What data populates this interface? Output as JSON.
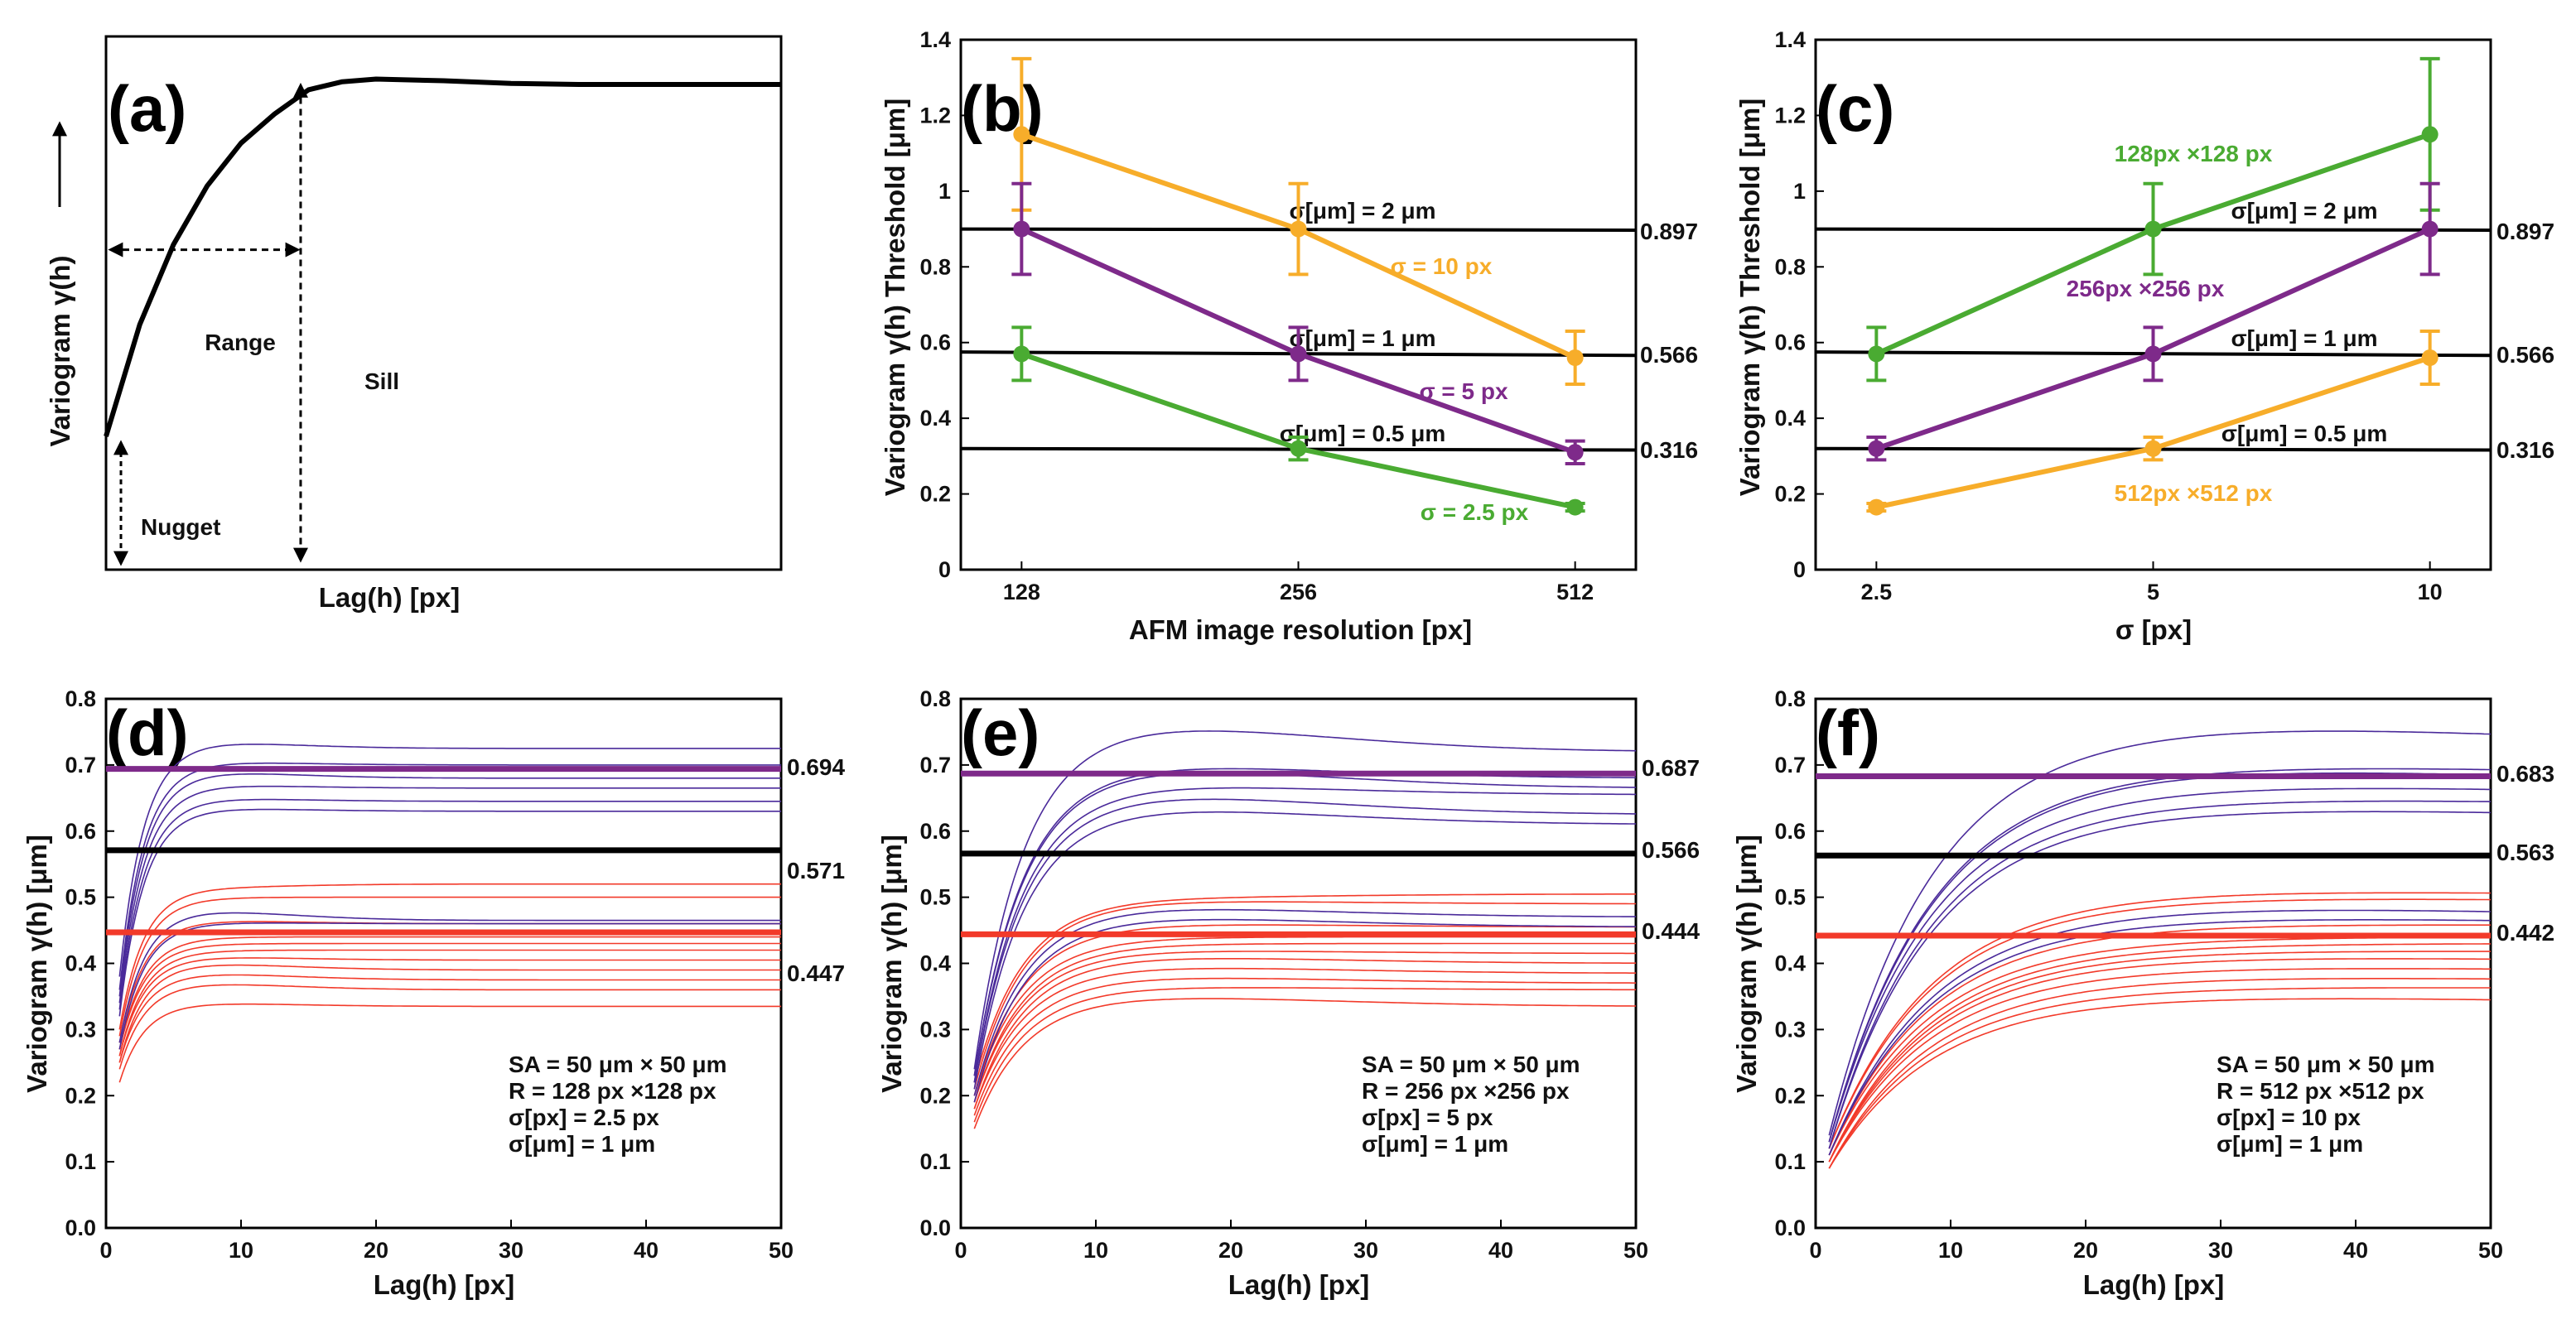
{
  "colors": {
    "black": "#000000",
    "green": "#4aab32",
    "purple": "#7e2a8a",
    "orange": "#f7ad2a",
    "red": "#f23a2a",
    "blue": "#4a2a9a"
  },
  "chart_data": [
    {
      "id": "a",
      "type": "line",
      "panel_label": "(a)",
      "title": "",
      "xlabel": "Lag(h) [px]",
      "ylabel": "Variogram γ(h)",
      "arrow_icon": "up-arrow-icon",
      "annotations": {
        "range": "Range",
        "sill": "Sill",
        "nugget": "Nugget"
      },
      "curve": {
        "nugget": 0.25,
        "sill": 0.92,
        "range": 0.31,
        "x": [
          0,
          0.05,
          0.1,
          0.15,
          0.2,
          0.25,
          0.3,
          0.35,
          0.4,
          0.5,
          0.6,
          0.7,
          0.8,
          0.9,
          1.0
        ],
        "y": [
          0.25,
          0.46,
          0.61,
          0.72,
          0.8,
          0.855,
          0.9,
          0.915,
          0.92,
          0.917,
          0.912,
          0.91,
          0.91,
          0.91,
          0.91
        ]
      }
    },
    {
      "id": "b",
      "type": "line",
      "panel_label": "(b)",
      "xlabel": "AFM image resolution [px]",
      "ylabel": "Variogram γ(h)  Threshold [μm]",
      "x_ticks": [
        "128",
        "256",
        "512"
      ],
      "y_ticks": [
        "0",
        "0.2",
        "0.4",
        "0.6",
        "0.8",
        "1",
        "1.2",
        "1.4"
      ],
      "ylim": [
        0,
        1.4
      ],
      "reference_lines": [
        {
          "label": "σ[μm] = 2 μm",
          "value_label": "0.897",
          "y0": 0.9,
          "y1": 0.897
        },
        {
          "label": "σ[μm] = 1 μm",
          "value_label": "0.566",
          "y0": 0.575,
          "y1": 0.566
        },
        {
          "label": "σ[μm] = 0.5 μm",
          "value_label": "0.316",
          "y0": 0.32,
          "y1": 0.316
        }
      ],
      "series": [
        {
          "name": "σ = 10 px",
          "color": "orange",
          "values": [
            1.15,
            0.9,
            0.56
          ],
          "errors": [
            0.2,
            0.12,
            0.07
          ]
        },
        {
          "name": "σ = 5 px",
          "color": "purple",
          "values": [
            0.9,
            0.57,
            0.31
          ],
          "errors": [
            0.12,
            0.07,
            0.03
          ]
        },
        {
          "name": "σ = 2.5 px",
          "color": "green",
          "values": [
            0.57,
            0.32,
            0.165
          ],
          "errors": [
            0.07,
            0.03,
            0.01
          ]
        }
      ]
    },
    {
      "id": "c",
      "type": "line",
      "panel_label": "(c)",
      "xlabel": "σ [px]",
      "ylabel": "Variogram γ(h)  Threshold [μm]",
      "x_ticks": [
        "2.5",
        "5",
        "10"
      ],
      "y_ticks": [
        "0",
        "0.2",
        "0.4",
        "0.6",
        "0.8",
        "1",
        "1.2",
        "1.4"
      ],
      "ylim": [
        0,
        1.4
      ],
      "reference_lines": [
        {
          "label": "σ[μm] = 2 μm",
          "value_label": "0.897",
          "y0": 0.9,
          "y1": 0.897
        },
        {
          "label": "σ[μm] = 1 μm",
          "value_label": "0.566",
          "y0": 0.575,
          "y1": 0.566
        },
        {
          "label": "σ[μm] = 0.5 μm",
          "value_label": "0.316",
          "y0": 0.32,
          "y1": 0.316
        }
      ],
      "series": [
        {
          "name": "128px ×128 px",
          "color": "green",
          "values": [
            0.57,
            0.9,
            1.15
          ],
          "errors": [
            0.07,
            0.12,
            0.2
          ]
        },
        {
          "name": "256px ×256 px",
          "color": "purple",
          "values": [
            0.32,
            0.57,
            0.9
          ],
          "errors": [
            0.03,
            0.07,
            0.12
          ]
        },
        {
          "name": "512px ×512 px",
          "color": "orange",
          "values": [
            0.165,
            0.32,
            0.56
          ],
          "errors": [
            0.01,
            0.03,
            0.07
          ]
        }
      ]
    },
    {
      "id": "d",
      "type": "line",
      "panel_label": "(d)",
      "xlabel": "Lag(h) [px]",
      "ylabel": "Variogram  γ(h) [μm]",
      "xlim": [
        0,
        50
      ],
      "ylim": [
        0,
        0.8
      ],
      "x_ticks": [
        "0",
        "10",
        "20",
        "30",
        "40",
        "50"
      ],
      "y_ticks": [
        "0.0",
        "0.1",
        "0.2",
        "0.3",
        "0.4",
        "0.5",
        "0.6",
        "0.7",
        "0.8"
      ],
      "rise_scale": 1.8,
      "thresholds": [
        {
          "value": 0.694,
          "label": "0.694",
          "color": "purple"
        },
        {
          "value": 0.571,
          "label": "0.571",
          "color": "black"
        },
        {
          "value": 0.447,
          "label": "0.447",
          "color": "red"
        }
      ],
      "blue_curves": [
        {
          "start": 0.38,
          "plateau": 0.735,
          "end": 0.725
        },
        {
          "start": 0.36,
          "plateau": 0.705,
          "end": 0.7
        },
        {
          "start": 0.35,
          "plateau": 0.69,
          "end": 0.68
        },
        {
          "start": 0.34,
          "plateau": 0.67,
          "end": 0.665
        },
        {
          "start": 0.33,
          "plateau": 0.65,
          "end": 0.645
        },
        {
          "start": 0.32,
          "plateau": 0.635,
          "end": 0.63
        },
        {
          "start": 0.28,
          "plateau": 0.48,
          "end": 0.465
        },
        {
          "start": 0.27,
          "plateau": 0.462,
          "end": 0.46
        }
      ],
      "red_curves": [
        {
          "start": 0.3,
          "plateau": 0.515,
          "end": 0.52
        },
        {
          "start": 0.29,
          "plateau": 0.5,
          "end": 0.5
        },
        {
          "start": 0.28,
          "plateau": 0.465,
          "end": 0.46
        },
        {
          "start": 0.27,
          "plateau": 0.44,
          "end": 0.44
        },
        {
          "start": 0.27,
          "plateau": 0.43,
          "end": 0.43
        },
        {
          "start": 0.26,
          "plateau": 0.42,
          "end": 0.42
        },
        {
          "start": 0.26,
          "plateau": 0.41,
          "end": 0.405
        },
        {
          "start": 0.25,
          "plateau": 0.4,
          "end": 0.39
        },
        {
          "start": 0.25,
          "plateau": 0.385,
          "end": 0.375
        },
        {
          "start": 0.24,
          "plateau": 0.37,
          "end": 0.36
        },
        {
          "start": 0.22,
          "plateau": 0.34,
          "end": 0.335
        }
      ],
      "info_lines": [
        "SA = 50 μm × 50 μm",
        "R = 128 px ×128 px",
        "σ[px] = 2.5 px",
        "σ[μm] = 1 μm"
      ]
    },
    {
      "id": "e",
      "type": "line",
      "panel_label": "(e)",
      "xlabel": "Lag(h) [px]",
      "ylabel": "Variogram  γ(h) [μm]",
      "xlim": [
        0,
        50
      ],
      "ylim": [
        0,
        0.8
      ],
      "x_ticks": [
        "0",
        "10",
        "20",
        "30",
        "40",
        "50"
      ],
      "y_ticks": [
        "0.0",
        "0.1",
        "0.2",
        "0.3",
        "0.4",
        "0.5",
        "0.6",
        "0.7",
        "0.8"
      ],
      "rise_scale": 3.6,
      "thresholds": [
        {
          "value": 0.687,
          "label": "0.687",
          "color": "purple"
        },
        {
          "value": 0.566,
          "label": "0.566",
          "color": "black"
        },
        {
          "value": 0.444,
          "label": "0.444",
          "color": "red"
        }
      ],
      "blue_curves": [
        {
          "start": 0.24,
          "plateau": 0.76,
          "end": 0.72
        },
        {
          "start": 0.23,
          "plateau": 0.7,
          "end": 0.68
        },
        {
          "start": 0.23,
          "plateau": 0.695,
          "end": 0.665
        },
        {
          "start": 0.22,
          "plateau": 0.67,
          "end": 0.655
        },
        {
          "start": 0.22,
          "plateau": 0.655,
          "end": 0.625
        },
        {
          "start": 0.21,
          "plateau": 0.635,
          "end": 0.61
        },
        {
          "start": 0.2,
          "plateau": 0.485,
          "end": 0.47
        },
        {
          "start": 0.19,
          "plateau": 0.47,
          "end": 0.455
        }
      ],
      "red_curves": [
        {
          "start": 0.22,
          "plateau": 0.5,
          "end": 0.505
        },
        {
          "start": 0.21,
          "plateau": 0.495,
          "end": 0.49
        },
        {
          "start": 0.2,
          "plateau": 0.46,
          "end": 0.455
        },
        {
          "start": 0.2,
          "plateau": 0.44,
          "end": 0.44
        },
        {
          "start": 0.19,
          "plateau": 0.43,
          "end": 0.43
        },
        {
          "start": 0.19,
          "plateau": 0.42,
          "end": 0.415
        },
        {
          "start": 0.18,
          "plateau": 0.41,
          "end": 0.4
        },
        {
          "start": 0.18,
          "plateau": 0.395,
          "end": 0.385
        },
        {
          "start": 0.17,
          "plateau": 0.38,
          "end": 0.37
        },
        {
          "start": 0.16,
          "plateau": 0.365,
          "end": 0.36
        },
        {
          "start": 0.15,
          "plateau": 0.35,
          "end": 0.335
        }
      ],
      "info_lines": [
        "SA = 50 μm × 50 μm",
        "R = 256 px ×256 px",
        "σ[px] = 5 px",
        "σ[μm] = 1 μm"
      ]
    },
    {
      "id": "f",
      "type": "line",
      "panel_label": "(f)",
      "xlabel": "Lag(h) [px]",
      "ylabel": "Variogram  γ(h) [μm]",
      "xlim": [
        0,
        50
      ],
      "ylim": [
        0,
        0.8
      ],
      "x_ticks": [
        "0",
        "10",
        "20",
        "30",
        "40",
        "50"
      ],
      "y_ticks": [
        "0.0",
        "0.1",
        "0.2",
        "0.3",
        "0.4",
        "0.5",
        "0.6",
        "0.7",
        "0.8"
      ],
      "rise_scale": 7.5,
      "thresholds": [
        {
          "value": 0.683,
          "label": "0.683",
          "color": "purple"
        },
        {
          "value": 0.563,
          "label": "0.563",
          "color": "black"
        },
        {
          "value": 0.442,
          "label": "0.442",
          "color": "red"
        }
      ],
      "blue_curves": [
        {
          "start": 0.14,
          "plateau": 0.76,
          "end": 0.72
        },
        {
          "start": 0.13,
          "plateau": 0.7,
          "end": 0.68
        },
        {
          "start": 0.13,
          "plateau": 0.695,
          "end": 0.665
        },
        {
          "start": 0.13,
          "plateau": 0.67,
          "end": 0.65
        },
        {
          "start": 0.12,
          "plateau": 0.65,
          "end": 0.635
        },
        {
          "start": 0.12,
          "plateau": 0.635,
          "end": 0.615
        },
        {
          "start": 0.11,
          "plateau": 0.485,
          "end": 0.465
        },
        {
          "start": 0.11,
          "plateau": 0.47,
          "end": 0.455
        }
      ],
      "red_curves": [
        {
          "start": 0.12,
          "plateau": 0.51,
          "end": 0.5
        },
        {
          "start": 0.12,
          "plateau": 0.5,
          "end": 0.49
        },
        {
          "start": 0.11,
          "plateau": 0.46,
          "end": 0.455
        },
        {
          "start": 0.11,
          "plateau": 0.44,
          "end": 0.44
        },
        {
          "start": 0.1,
          "plateau": 0.43,
          "end": 0.43
        },
        {
          "start": 0.1,
          "plateau": 0.42,
          "end": 0.415
        },
        {
          "start": 0.1,
          "plateau": 0.41,
          "end": 0.4
        },
        {
          "start": 0.1,
          "plateau": 0.395,
          "end": 0.385
        },
        {
          "start": 0.09,
          "plateau": 0.38,
          "end": 0.37
        },
        {
          "start": 0.09,
          "plateau": 0.365,
          "end": 0.36
        },
        {
          "start": 0.09,
          "plateau": 0.35,
          "end": 0.335
        }
      ],
      "info_lines": [
        "SA = 50 μm × 50 μm",
        "R = 512 px ×512 px",
        "σ[px] = 10 px",
        "σ[μm] = 1 μm"
      ]
    }
  ]
}
